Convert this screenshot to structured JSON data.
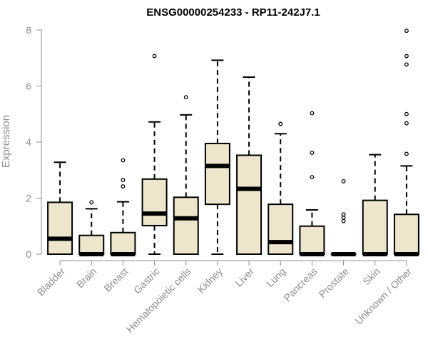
{
  "chart_data": {
    "type": "boxplot",
    "title": "ENSG00000254233 - RP11-242J7.1",
    "xlabel": "",
    "ylabel": "Expression",
    "ylim": [
      0,
      8
    ],
    "yticks": [
      0,
      2,
      4,
      6,
      8
    ],
    "grid": false,
    "legend": "none",
    "colors": {
      "box_fill": "#ede6cc",
      "stroke": "#000000",
      "axis": "#8c8c8c"
    },
    "categories": [
      "Bladder",
      "Brain",
      "Breast",
      "Gastric",
      "Hematopoietic cells",
      "Kidney",
      "Liver",
      "Lung",
      "Pancreas",
      "Prostate",
      "Skin",
      "Unknown / Other"
    ],
    "boxes": [
      {
        "q1": 0.0,
        "median": 0.55,
        "q3": 1.85,
        "whisker_low": 0.0,
        "whisker_high": 3.28,
        "outliers": []
      },
      {
        "q1": 0.0,
        "median": 0.0,
        "q3": 0.67,
        "whisker_low": 0.0,
        "whisker_high": 1.62,
        "outliers": [
          1.85
        ]
      },
      {
        "q1": 0.0,
        "median": 0.0,
        "q3": 0.77,
        "whisker_low": 0.0,
        "whisker_high": 1.87,
        "outliers": [
          2.42,
          2.65,
          3.35
        ]
      },
      {
        "q1": 1.02,
        "median": 1.45,
        "q3": 2.68,
        "whisker_low": 0.0,
        "whisker_high": 4.72,
        "outliers": [
          7.07
        ]
      },
      {
        "q1": 0.0,
        "median": 1.28,
        "q3": 2.03,
        "whisker_low": 0.0,
        "whisker_high": 4.97,
        "outliers": [
          5.6
        ]
      },
      {
        "q1": 1.78,
        "median": 3.15,
        "q3": 3.95,
        "whisker_low": 0.0,
        "whisker_high": 6.92,
        "outliers": []
      },
      {
        "q1": 0.0,
        "median": 2.33,
        "q3": 3.53,
        "whisker_low": 0.0,
        "whisker_high": 6.32,
        "outliers": []
      },
      {
        "q1": 0.0,
        "median": 0.43,
        "q3": 1.78,
        "whisker_low": 0.0,
        "whisker_high": 4.3,
        "outliers": [
          4.65
        ]
      },
      {
        "q1": 0.0,
        "median": 0.0,
        "q3": 1.0,
        "whisker_low": 0.0,
        "whisker_high": 1.58,
        "outliers": [
          2.75,
          3.62,
          5.03
        ]
      },
      {
        "q1": 0.0,
        "median": 0.0,
        "q3": 0.0,
        "whisker_low": 0.0,
        "whisker_high": 0.0,
        "outliers": [
          1.18,
          1.3,
          1.42,
          2.6
        ]
      },
      {
        "q1": 0.0,
        "median": 0.0,
        "q3": 1.92,
        "whisker_low": 0.0,
        "whisker_high": 3.55,
        "outliers": []
      },
      {
        "q1": 0.0,
        "median": 0.0,
        "q3": 1.42,
        "whisker_low": 0.0,
        "whisker_high": 3.15,
        "outliers": [
          3.58,
          4.67,
          5.0,
          6.77,
          7.07,
          7.97
        ]
      }
    ]
  }
}
